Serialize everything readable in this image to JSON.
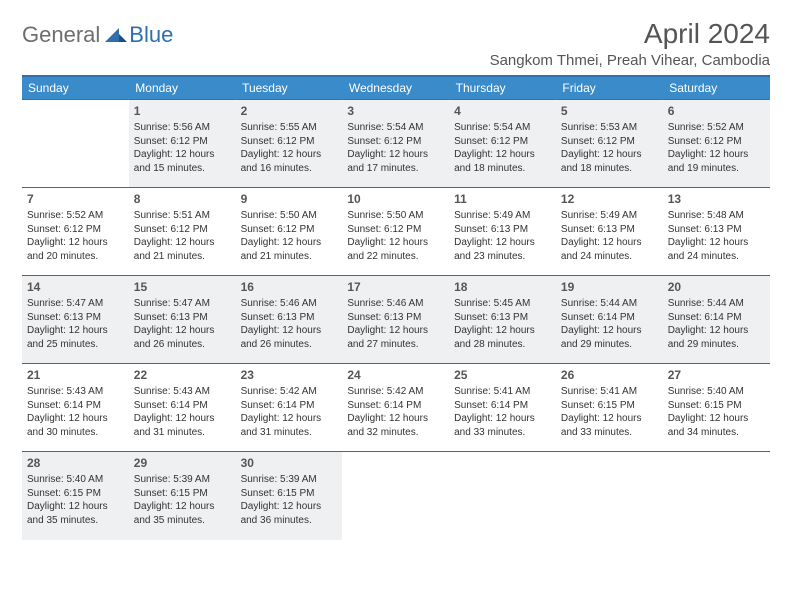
{
  "brand": {
    "part1": "General",
    "part2": "Blue"
  },
  "title": "April 2024",
  "location": "Sangkom Thmei, Preah Vihear, Cambodia",
  "colors": {
    "header_bg": "#3a8bc9",
    "border": "#2f6fab",
    "shade": "#eef0f2",
    "text": "#333333",
    "title_text": "#555555"
  },
  "day_headers": [
    "Sunday",
    "Monday",
    "Tuesday",
    "Wednesday",
    "Thursday",
    "Friday",
    "Saturday"
  ],
  "weeks": [
    [
      null,
      {
        "n": "1",
        "sr": "Sunrise: 5:56 AM",
        "ss": "Sunset: 6:12 PM",
        "d1": "Daylight: 12 hours",
        "d2": "and 15 minutes."
      },
      {
        "n": "2",
        "sr": "Sunrise: 5:55 AM",
        "ss": "Sunset: 6:12 PM",
        "d1": "Daylight: 12 hours",
        "d2": "and 16 minutes."
      },
      {
        "n": "3",
        "sr": "Sunrise: 5:54 AM",
        "ss": "Sunset: 6:12 PM",
        "d1": "Daylight: 12 hours",
        "d2": "and 17 minutes."
      },
      {
        "n": "4",
        "sr": "Sunrise: 5:54 AM",
        "ss": "Sunset: 6:12 PM",
        "d1": "Daylight: 12 hours",
        "d2": "and 18 minutes."
      },
      {
        "n": "5",
        "sr": "Sunrise: 5:53 AM",
        "ss": "Sunset: 6:12 PM",
        "d1": "Daylight: 12 hours",
        "d2": "and 18 minutes."
      },
      {
        "n": "6",
        "sr": "Sunrise: 5:52 AM",
        "ss": "Sunset: 6:12 PM",
        "d1": "Daylight: 12 hours",
        "d2": "and 19 minutes."
      }
    ],
    [
      {
        "n": "7",
        "sr": "Sunrise: 5:52 AM",
        "ss": "Sunset: 6:12 PM",
        "d1": "Daylight: 12 hours",
        "d2": "and 20 minutes."
      },
      {
        "n": "8",
        "sr": "Sunrise: 5:51 AM",
        "ss": "Sunset: 6:12 PM",
        "d1": "Daylight: 12 hours",
        "d2": "and 21 minutes."
      },
      {
        "n": "9",
        "sr": "Sunrise: 5:50 AM",
        "ss": "Sunset: 6:12 PM",
        "d1": "Daylight: 12 hours",
        "d2": "and 21 minutes."
      },
      {
        "n": "10",
        "sr": "Sunrise: 5:50 AM",
        "ss": "Sunset: 6:12 PM",
        "d1": "Daylight: 12 hours",
        "d2": "and 22 minutes."
      },
      {
        "n": "11",
        "sr": "Sunrise: 5:49 AM",
        "ss": "Sunset: 6:13 PM",
        "d1": "Daylight: 12 hours",
        "d2": "and 23 minutes."
      },
      {
        "n": "12",
        "sr": "Sunrise: 5:49 AM",
        "ss": "Sunset: 6:13 PM",
        "d1": "Daylight: 12 hours",
        "d2": "and 24 minutes."
      },
      {
        "n": "13",
        "sr": "Sunrise: 5:48 AM",
        "ss": "Sunset: 6:13 PM",
        "d1": "Daylight: 12 hours",
        "d2": "and 24 minutes."
      }
    ],
    [
      {
        "n": "14",
        "sr": "Sunrise: 5:47 AM",
        "ss": "Sunset: 6:13 PM",
        "d1": "Daylight: 12 hours",
        "d2": "and 25 minutes."
      },
      {
        "n": "15",
        "sr": "Sunrise: 5:47 AM",
        "ss": "Sunset: 6:13 PM",
        "d1": "Daylight: 12 hours",
        "d2": "and 26 minutes."
      },
      {
        "n": "16",
        "sr": "Sunrise: 5:46 AM",
        "ss": "Sunset: 6:13 PM",
        "d1": "Daylight: 12 hours",
        "d2": "and 26 minutes."
      },
      {
        "n": "17",
        "sr": "Sunrise: 5:46 AM",
        "ss": "Sunset: 6:13 PM",
        "d1": "Daylight: 12 hours",
        "d2": "and 27 minutes."
      },
      {
        "n": "18",
        "sr": "Sunrise: 5:45 AM",
        "ss": "Sunset: 6:13 PM",
        "d1": "Daylight: 12 hours",
        "d2": "and 28 minutes."
      },
      {
        "n": "19",
        "sr": "Sunrise: 5:44 AM",
        "ss": "Sunset: 6:14 PM",
        "d1": "Daylight: 12 hours",
        "d2": "and 29 minutes."
      },
      {
        "n": "20",
        "sr": "Sunrise: 5:44 AM",
        "ss": "Sunset: 6:14 PM",
        "d1": "Daylight: 12 hours",
        "d2": "and 29 minutes."
      }
    ],
    [
      {
        "n": "21",
        "sr": "Sunrise: 5:43 AM",
        "ss": "Sunset: 6:14 PM",
        "d1": "Daylight: 12 hours",
        "d2": "and 30 minutes."
      },
      {
        "n": "22",
        "sr": "Sunrise: 5:43 AM",
        "ss": "Sunset: 6:14 PM",
        "d1": "Daylight: 12 hours",
        "d2": "and 31 minutes."
      },
      {
        "n": "23",
        "sr": "Sunrise: 5:42 AM",
        "ss": "Sunset: 6:14 PM",
        "d1": "Daylight: 12 hours",
        "d2": "and 31 minutes."
      },
      {
        "n": "24",
        "sr": "Sunrise: 5:42 AM",
        "ss": "Sunset: 6:14 PM",
        "d1": "Daylight: 12 hours",
        "d2": "and 32 minutes."
      },
      {
        "n": "25",
        "sr": "Sunrise: 5:41 AM",
        "ss": "Sunset: 6:14 PM",
        "d1": "Daylight: 12 hours",
        "d2": "and 33 minutes."
      },
      {
        "n": "26",
        "sr": "Sunrise: 5:41 AM",
        "ss": "Sunset: 6:15 PM",
        "d1": "Daylight: 12 hours",
        "d2": "and 33 minutes."
      },
      {
        "n": "27",
        "sr": "Sunrise: 5:40 AM",
        "ss": "Sunset: 6:15 PM",
        "d1": "Daylight: 12 hours",
        "d2": "and 34 minutes."
      }
    ],
    [
      {
        "n": "28",
        "sr": "Sunrise: 5:40 AM",
        "ss": "Sunset: 6:15 PM",
        "d1": "Daylight: 12 hours",
        "d2": "and 35 minutes."
      },
      {
        "n": "29",
        "sr": "Sunrise: 5:39 AM",
        "ss": "Sunset: 6:15 PM",
        "d1": "Daylight: 12 hours",
        "d2": "and 35 minutes."
      },
      {
        "n": "30",
        "sr": "Sunrise: 5:39 AM",
        "ss": "Sunset: 6:15 PM",
        "d1": "Daylight: 12 hours",
        "d2": "and 36 minutes."
      },
      null,
      null,
      null,
      null
    ]
  ]
}
